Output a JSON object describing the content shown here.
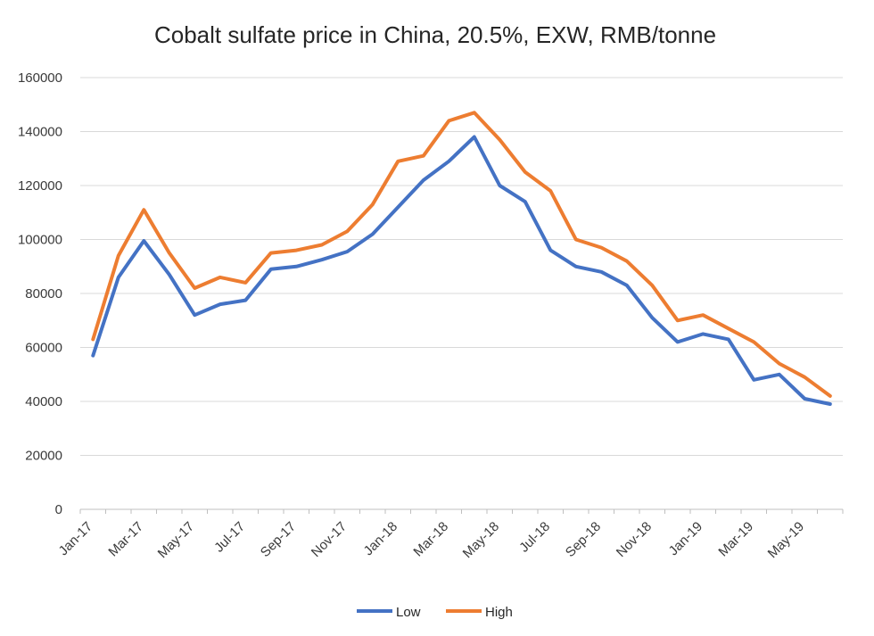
{
  "chart_data": {
    "type": "line",
    "title": "Cobalt sulfate price in China, 20.5%, EXW, RMB/tonne",
    "xlabel": "",
    "ylabel": "",
    "ylim": [
      0,
      160000
    ],
    "y_ticks": [
      "0",
      "20000",
      "40000",
      "60000",
      "80000",
      "100000",
      "120000",
      "140000",
      "160000"
    ],
    "categories": [
      "Jan-17",
      "Feb-17",
      "Mar-17",
      "Apr-17",
      "May-17",
      "Jun-17",
      "Jul-17",
      "Aug-17",
      "Sep-17",
      "Oct-17",
      "Nov-17",
      "Dec-17",
      "Jan-18",
      "Feb-18",
      "Mar-18",
      "Apr-18",
      "May-18",
      "Jun-18",
      "Jul-18",
      "Aug-18",
      "Sep-18",
      "Oct-18",
      "Nov-18",
      "Dec-18",
      "Jan-19",
      "Feb-19",
      "Mar-19",
      "Apr-19",
      "May-19",
      "Jun-19"
    ],
    "x_tick_labels": [
      "Jan-17",
      "Mar-17",
      "May-17",
      "Jul-17",
      "Sep-17",
      "Nov-17",
      "Jan-18",
      "Mar-18",
      "May-18",
      "Jul-18",
      "Sep-18",
      "Nov-18",
      "Jan-19",
      "Mar-19",
      "May-19"
    ],
    "series": [
      {
        "name": "Low",
        "color": "#4472C4",
        "values": [
          57000,
          86000,
          99500,
          87000,
          72000,
          76000,
          77500,
          89000,
          90000,
          92500,
          95500,
          102000,
          112000,
          122000,
          129000,
          138000,
          120000,
          114000,
          96000,
          90000,
          88000,
          83000,
          71000,
          62000,
          65000,
          63000,
          48000,
          50000,
          41000,
          39000
        ]
      },
      {
        "name": "High",
        "color": "#ED7D31",
        "values": [
          63000,
          94000,
          111000,
          95000,
          82000,
          86000,
          84000,
          95000,
          96000,
          98000,
          103000,
          113000,
          129000,
          131000,
          144000,
          147000,
          137000,
          125000,
          118000,
          100000,
          97000,
          92000,
          83000,
          70000,
          72000,
          67000,
          62000,
          54000,
          49000,
          42000
        ]
      }
    ],
    "grid": true,
    "legend_position": "bottom"
  }
}
